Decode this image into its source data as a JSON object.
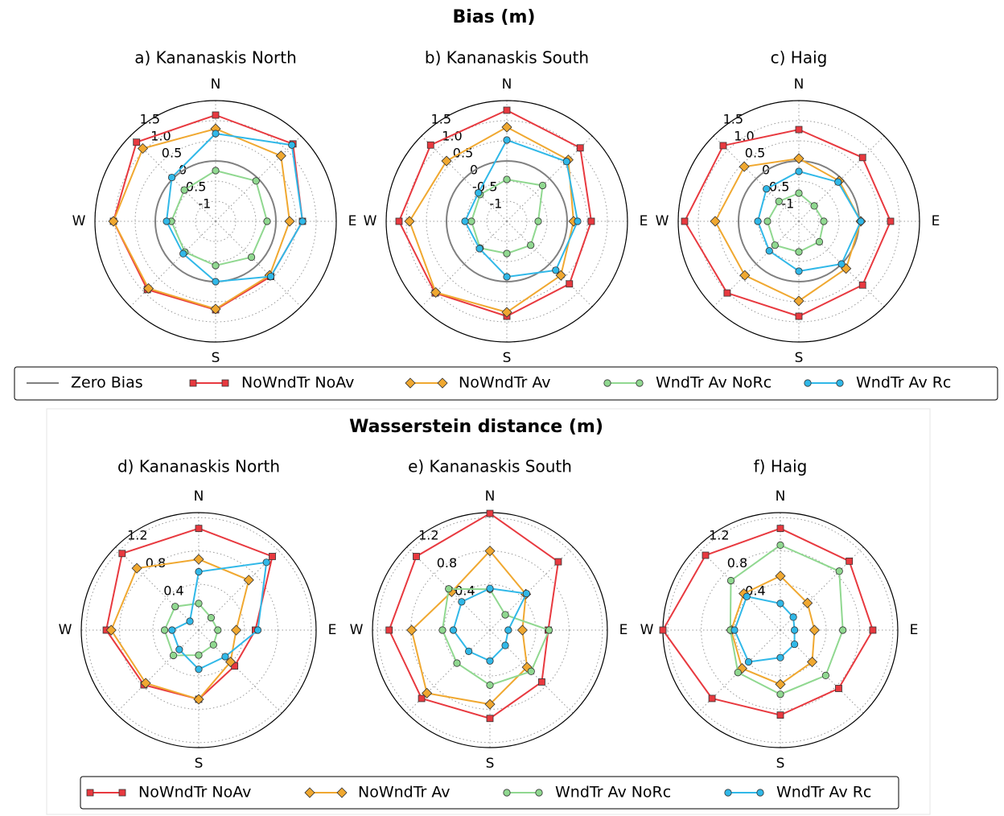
{
  "chart_data": [
    {
      "type": "radar",
      "suptitle": "Bias (m)",
      "title": "a) Kananaskis North",
      "categories": [
        "N",
        null,
        "E",
        null,
        "S",
        null,
        "W",
        null
      ],
      "ylim": [
        -1.5,
        1.5
      ],
      "yticks": [
        -1,
        -0.5,
        0,
        0.5,
        {
          "value": 1,
          "label": "1.0"
        },
        1.5
      ],
      "zero_line": {
        "name": "Zero Bias",
        "value": 0,
        "color": "#808080"
      },
      "series": [
        {
          "name": "NoWndTr NoAv",
          "color": "#e8393f",
          "marker": "square",
          "values": [
            1.14,
            1.22,
            0.66,
            0.44,
            0.7,
            0.9,
            1.04,
            1.28
          ]
        },
        {
          "name": "NoWndTr Av",
          "color": "#f0a830",
          "marker": "diamond",
          "values": [
            0.8,
            0.8,
            0.34,
            0.4,
            0.68,
            0.86,
            1.04,
            1.06
          ]
        },
        {
          "name": "WndTr Av NoRc",
          "color": "#90d890",
          "marker": "circle",
          "values": [
            -0.24,
            -0.08,
            -0.22,
            -0.24,
            -0.4,
            -0.42,
            -0.4,
            -0.4
          ]
        },
        {
          "name": "WndTr Av Rc",
          "color": "#30b8e8",
          "marker": "circle",
          "values": [
            0.68,
            1.18,
            0.66,
            0.44,
            0,
            -0.36,
            -0.28,
            0.04
          ]
        }
      ]
    },
    {
      "type": "radar",
      "title": "b) Kananaskis South",
      "categories": [
        "N",
        null,
        "E",
        null,
        "S",
        null,
        "W",
        null
      ],
      "ylim": [
        -1.5,
        1.5
      ],
      "yticks": [
        -1,
        -0.5,
        0,
        0.5,
        {
          "value": 1,
          "label": "1.0"
        },
        1.5
      ],
      "zero_line": {
        "name": "Zero Bias",
        "value": 0,
        "color": "#808080"
      },
      "series": [
        {
          "name": "NoWndTr NoAv",
          "color": "#e8393f",
          "marker": "square",
          "values": [
            1.26,
            1.08,
            0.6,
            0.7,
            0.86,
            1.02,
            1.18,
            1.18
          ]
        },
        {
          "name": "NoWndTr Av",
          "color": "#f0a830",
          "marker": "diamond",
          "values": [
            0.84,
            0.66,
            0.16,
            0.4,
            0.76,
            1.0,
            0.92,
            0.62
          ]
        },
        {
          "name": "WndTr Av NoRc",
          "color": "#90d890",
          "marker": "circle",
          "values": [
            -0.46,
            -0.24,
            -0.72,
            -0.66,
            -0.7,
            -0.56,
            -0.62,
            -0.56
          ]
        },
        {
          "name": "WndTr Av Rc",
          "color": "#30b8e8",
          "marker": "circle",
          "values": [
            0.52,
            0.6,
            0.26,
            0.22,
            -0.12,
            -0.54,
            -0.46,
            -0.5
          ]
        }
      ]
    },
    {
      "type": "radar",
      "title": "c) Haig",
      "categories": [
        "N",
        null,
        "E",
        null,
        "S",
        null,
        "W",
        null
      ],
      "ylim": [
        -1.5,
        1.5
      ],
      "yticks": [
        -1,
        -0.5,
        0,
        0.5,
        {
          "value": 1,
          "label": "1.0"
        },
        1.5
      ],
      "zero_line": {
        "name": "Zero Bias",
        "value": 0,
        "color": "#808080"
      },
      "series": [
        {
          "name": "NoWndTr NoAv",
          "color": "#e8393f",
          "marker": "square",
          "values": [
            0.78,
            0.74,
            0.78,
            0.74,
            0.86,
            1.02,
            1.34,
            1.16
          ]
        },
        {
          "name": "NoWndTr Av",
          "color": "#f0a830",
          "marker": "diamond",
          "values": [
            0.06,
            -0.08,
            0.04,
            0.16,
            0.48,
            0.4,
            0.58,
            0.42
          ]
        },
        {
          "name": "WndTr Av NoRc",
          "color": "#90d890",
          "marker": "circle",
          "values": [
            -0.8,
            -0.96,
            -0.88,
            -0.78,
            -0.74,
            -0.66,
            -0.72,
            -0.8
          ]
        },
        {
          "name": "WndTr Av Rc",
          "color": "#30b8e8",
          "marker": "circle",
          "values": [
            -0.26,
            -0.12,
            0.04,
            0,
            -0.26,
            -0.46,
            -0.48,
            -0.36
          ]
        }
      ]
    },
    {
      "type": "radar",
      "suptitle": "Wasserstein distance (m)",
      "title": "d) Kananaskis North",
      "categories": [
        "N",
        null,
        "E",
        null,
        "S",
        null,
        "W",
        null
      ],
      "ylim": [
        -0.15,
        1.26
      ],
      "yticks": [
        0.4,
        0.8,
        1.2
      ],
      "series": [
        {
          "name": "NoWndTr NoAv",
          "color": "#e8393f",
          "marker": "square",
          "values": [
            1.07,
            1.1,
            0.53,
            0.46,
            0.68,
            0.78,
            0.96,
            1.15
          ]
        },
        {
          "name": "NoWndTr Av",
          "color": "#f0a830",
          "marker": "diamond",
          "values": [
            0.7,
            0.7,
            0.3,
            0.39,
            0.68,
            0.75,
            0.9,
            0.9
          ]
        },
        {
          "name": "WndTr Av NoRc",
          "color": "#90d890",
          "marker": "circle",
          "values": [
            0.17,
            0.06,
            0.08,
            0.1,
            0.15,
            0.28,
            0.26,
            0.25
          ]
        },
        {
          "name": "WndTr Av Rc",
          "color": "#30b8e8",
          "marker": "circle",
          "values": [
            0.55,
            1.0,
            0.56,
            0.3,
            0.32,
            0.18,
            0.17,
            0
          ]
        }
      ]
    },
    {
      "type": "radar",
      "title": "e) Kananaskis South",
      "categories": [
        "N",
        null,
        "E",
        null,
        "S",
        null,
        "W",
        null
      ],
      "ylim": [
        -0.15,
        1.26
      ],
      "yticks": [
        0.4,
        0.8,
        1.2
      ],
      "series": [
        {
          "name": "NoWndTr NoAv",
          "color": "#e8393f",
          "marker": "square",
          "values": [
            1.25,
            1.01,
            0.55,
            0.73,
            0.91,
            1.01,
            1.06,
            1.1
          ]
        },
        {
          "name": "NoWndTr Av",
          "color": "#f0a830",
          "marker": "diamond",
          "values": [
            0.8,
            0.46,
            0.24,
            0.48,
            0.74,
            0.92,
            0.79,
            0.5
          ]
        },
        {
          "name": "WndTr Av NoRc",
          "color": "#90d890",
          "marker": "circle",
          "values": [
            0.34,
            0.11,
            0.56,
            0.55,
            0.51,
            0.41,
            0.42,
            0.55
          ]
        },
        {
          "name": "WndTr Av Rc",
          "color": "#30b8e8",
          "marker": "circle",
          "values": [
            0.35,
            0.47,
            0.07,
            0.11,
            0.22,
            0.21,
            0.29,
            0.33
          ]
        }
      ]
    },
    {
      "type": "radar",
      "title": "f) Haig",
      "categories": [
        "N",
        null,
        "E",
        null,
        "S",
        null,
        "W",
        null
      ],
      "ylim": [
        -0.15,
        1.26
      ],
      "yticks": [
        0.4,
        0.8,
        1.2
      ],
      "series": [
        {
          "name": "NoWndTr NoAv",
          "color": "#e8393f",
          "marker": "square",
          "values": [
            1.07,
            1.02,
            0.96,
            0.84,
            0.87,
            1.01,
            1.26,
            1.12
          ]
        },
        {
          "name": "NoWndTr Av",
          "color": "#f0a830",
          "marker": "diamond",
          "values": [
            0.5,
            0.31,
            0.26,
            0.39,
            0.5,
            0.5,
            0.44,
            0.47
          ]
        },
        {
          "name": "WndTr Av NoRc",
          "color": "#90d890",
          "marker": "circle",
          "values": [
            0.87,
            0.85,
            0.6,
            0.62,
            0.62,
            0.57,
            0.45,
            0.69
          ]
        },
        {
          "name": "WndTr Av Rc",
          "color": "#30b8e8",
          "marker": "circle",
          "values": [
            0.17,
            0.07,
            0.02,
            0.09,
            0.18,
            0.39,
            0.4,
            0.42
          ]
        }
      ]
    }
  ]
}
